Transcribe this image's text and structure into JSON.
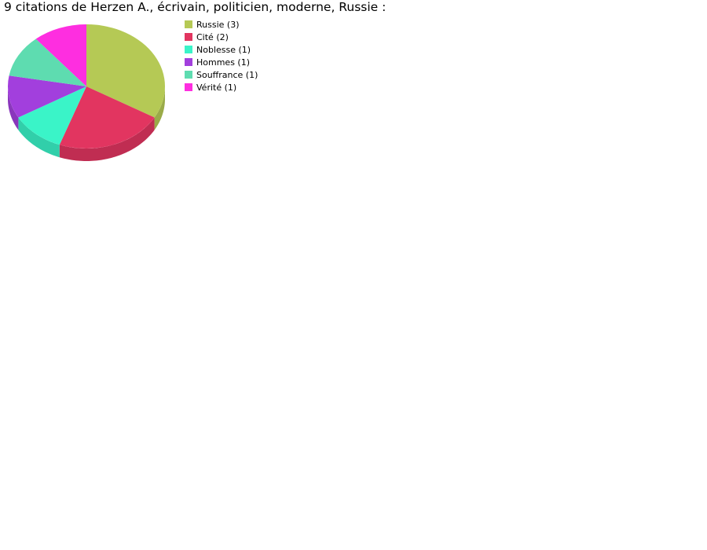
{
  "chart_data": {
    "type": "pie",
    "title": "9 citations de Herzen A., écrivain, politicien, moderne, Russie :",
    "legend_position": "right",
    "slices": [
      {
        "label": "Russie (3)",
        "value": 3,
        "color": "#b5c955"
      },
      {
        "label": "Cité (2)",
        "value": 2,
        "color": "#e23560"
      },
      {
        "label": "Noblesse (1)",
        "value": 1,
        "color": "#3af4c8"
      },
      {
        "label": "Hommes (1)",
        "value": 1,
        "color": "#a23fdd"
      },
      {
        "label": "Souffrance (1)",
        "value": 1,
        "color": "#5edcb0"
      },
      {
        "label": "Vérité (1)",
        "value": 1,
        "color": "#fe2ee0"
      }
    ]
  }
}
